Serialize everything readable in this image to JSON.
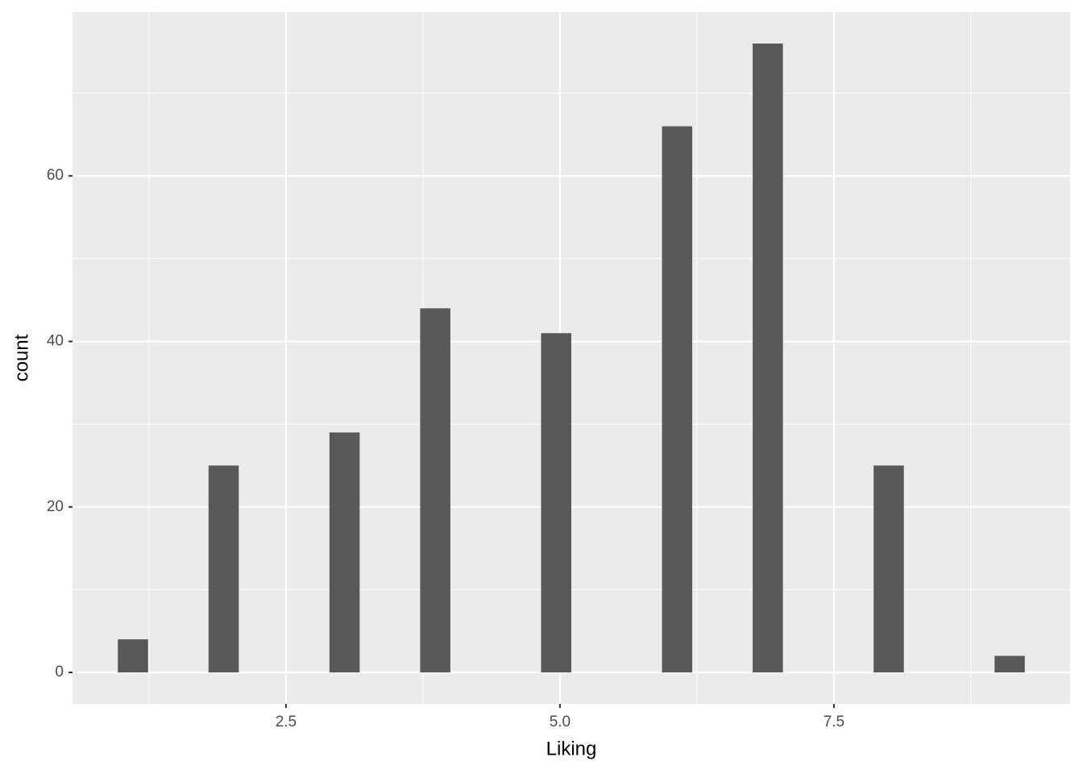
{
  "chart_data": {
    "type": "histogram",
    "x_label": "Liking",
    "y_label": "count",
    "bins": [
      0.9655,
      1.2414,
      1.5172,
      1.7931,
      2.069,
      2.3448,
      2.6207,
      2.8966,
      3.1724,
      3.4483,
      3.7241,
      4.0,
      4.2759,
      4.5517,
      4.8276,
      5.1034,
      5.3793,
      5.6552,
      5.931,
      6.2069,
      6.4828,
      6.7586,
      7.0345,
      7.3103,
      7.5862,
      7.8621,
      8.1379,
      8.4138,
      8.6897,
      8.9655,
      9.2414
    ],
    "values": [
      4,
      0,
      0,
      25,
      0,
      0,
      0,
      29,
      0,
      0,
      44,
      0,
      0,
      0,
      41,
      0,
      0,
      0,
      66,
      0,
      0,
      76,
      0,
      0,
      0,
      25,
      0,
      0,
      0,
      2
    ],
    "color": "#595959",
    "xlim": [
      0.552,
      9.655
    ],
    "ylim": [
      -3.8,
      79.8
    ],
    "xticks": [
      2.5,
      {
        "value": 5,
        "label": "5.0"
      },
      7.5
    ],
    "yticks": [
      0,
      20,
      40,
      60
    ],
    "grid": true,
    "minor_grid": true
  }
}
